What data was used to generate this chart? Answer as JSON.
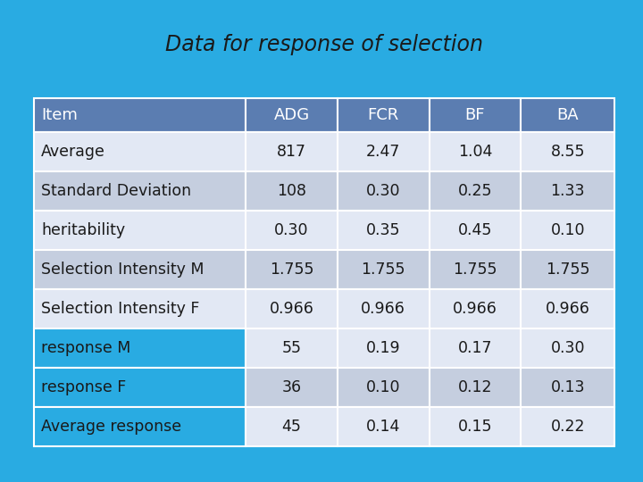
{
  "title": "Data for response of selection",
  "title_bg": "#29ABE2",
  "page_bg": "#29ABE2",
  "header_row": [
    "Item",
    "ADG",
    "FCR",
    "BF",
    "BA"
  ],
  "header_bg": "#5B7DB1",
  "header_text_color": "#FFFFFF",
  "rows": [
    [
      "Average",
      "817",
      "2.47",
      "1.04",
      "8.55"
    ],
    [
      "Standard Deviation",
      "108",
      "0.30",
      "0.25",
      "1.33"
    ],
    [
      "heritability",
      "0.30",
      "0.35",
      "0.45",
      "0.10"
    ],
    [
      "Selection Intensity M",
      "1.755",
      "1.755",
      "1.755",
      "1.755"
    ],
    [
      "Selection Intensity F",
      "0.966",
      "0.966",
      "0.966",
      "0.966"
    ]
  ],
  "row_colors": [
    "#E2E8F4",
    "#C5CEDF",
    "#E2E8F4",
    "#C5CEDF",
    "#E2E8F4"
  ],
  "response_rows": [
    [
      "response M",
      "55",
      "0.19",
      "0.17",
      "0.30"
    ],
    [
      "response F",
      "36",
      "0.10",
      "0.12",
      "0.13"
    ],
    [
      "Average response",
      "45",
      "0.14",
      "0.15",
      "0.22"
    ]
  ],
  "response_label_bg": "#29ABE2",
  "response_data_colors": [
    "#E2E8F4",
    "#C5CEDF",
    "#E2E8F4"
  ],
  "text_color": "#1A1A1A",
  "font_size": 12.5,
  "header_font_size": 13,
  "title_font_size": 17
}
